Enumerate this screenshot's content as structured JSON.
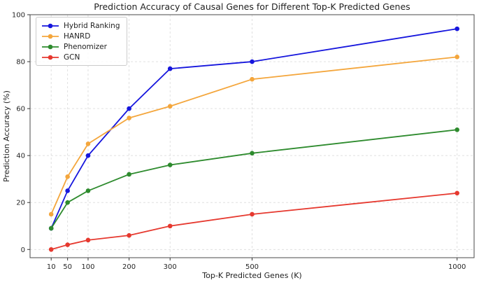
{
  "chart_data": {
    "type": "line",
    "title": "Prediction Accuracy of Causal Genes for Different Top-K Predicted Genes",
    "xlabel": "Top-K Predicted Genes (K)",
    "ylabel": "Prediction Accuracy (%)",
    "x": [
      10,
      50,
      100,
      200,
      300,
      500,
      1000
    ],
    "xticks": [
      10,
      50,
      100,
      200,
      300,
      500,
      1000
    ],
    "yticks": [
      0,
      20,
      40,
      60,
      80,
      100
    ],
    "xlim": [
      -41.5,
      1041.5
    ],
    "ylim": [
      -3.5,
      100
    ],
    "grid": true,
    "grid_color": "#dcdcdc",
    "spine_color": "#4a4a4a",
    "legend_position": "upper-left",
    "series": [
      {
        "name": "Hybrid Ranking",
        "color": "#1616dd",
        "values": [
          9,
          25,
          40,
          60,
          77,
          80,
          94
        ]
      },
      {
        "name": "HANRD",
        "color": "#f4a63c",
        "values": [
          15,
          31,
          45,
          56,
          61,
          72.5,
          82
        ]
      },
      {
        "name": "Phenomizer",
        "color": "#2e8b2e",
        "values": [
          9,
          20,
          25,
          32,
          36,
          41,
          51
        ]
      },
      {
        "name": "GCN",
        "color": "#e6392f",
        "values": [
          0,
          2,
          4,
          6,
          10,
          15,
          24
        ]
      }
    ]
  }
}
